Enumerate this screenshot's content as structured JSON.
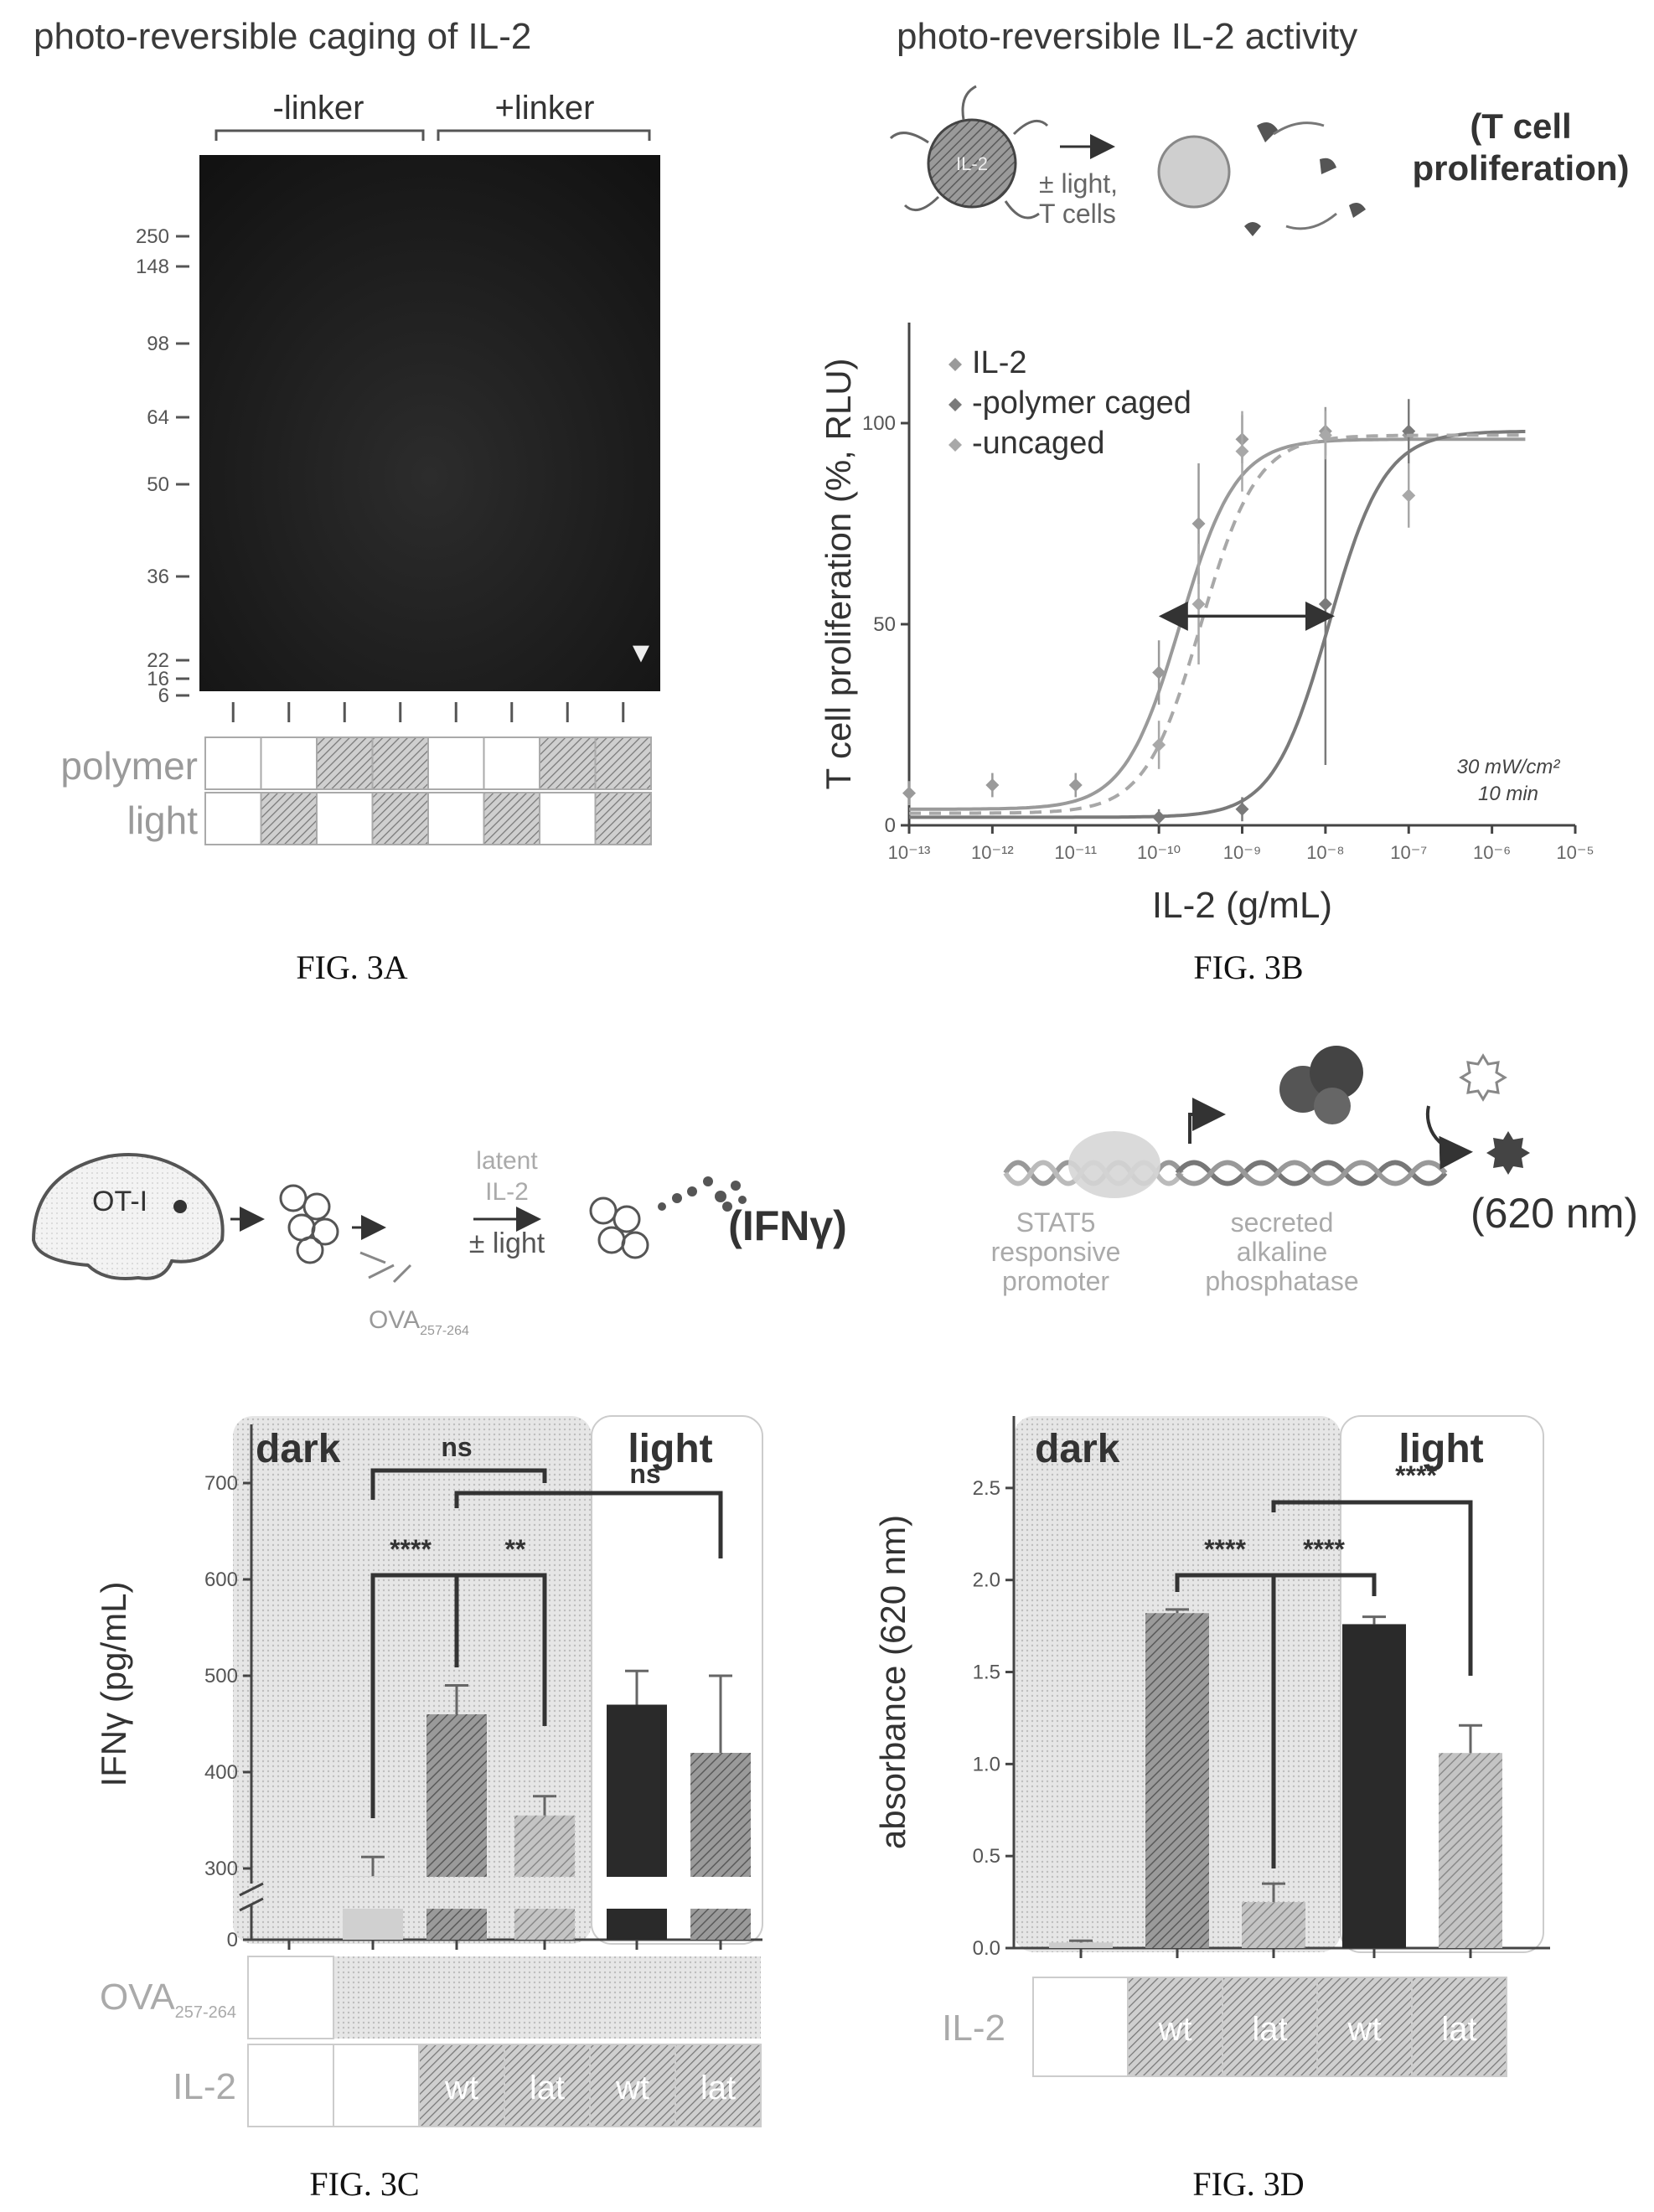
{
  "panels": {
    "a": {
      "title": "photo-reversible caging of IL-2",
      "caption": "FIG. 3A",
      "groups": [
        "-linker",
        "+linker"
      ],
      "ladder": [
        "250",
        "148",
        "98",
        "64",
        "50",
        "36",
        "22",
        "16",
        "6"
      ],
      "row_labels": [
        "polymer",
        "light"
      ],
      "polymer": [
        0,
        0,
        1,
        1,
        0,
        0,
        1,
        1
      ],
      "light": [
        0,
        1,
        0,
        1,
        0,
        1,
        0,
        1
      ],
      "marker": "▼"
    },
    "b": {
      "title": "photo-reversible IL-2 activity",
      "scheme_line1": "± light,",
      "scheme_line2": "T cells",
      "scheme_result_line1": "(T cell",
      "scheme_result_line2": "proliferation)",
      "scheme_blob_label": "IL-2",
      "note_line1": "30 mW/cm²",
      "note_line2": "10 min",
      "caption": "FIG. 3B"
    },
    "c": {
      "scheme_mouse_label": "OT-I",
      "scheme_peptide": "OVA",
      "scheme_peptide_sub": "257-264",
      "scheme_top1": "latent",
      "scheme_top2": "IL-2",
      "scheme_bottom": "± light",
      "scheme_result": "(IFNγ)",
      "region_dark": "dark",
      "region_light": "light",
      "sig": [
        "ns",
        "ns",
        "****",
        "**"
      ],
      "row_ova_label": "OVA",
      "row_ova_sub": "257-264",
      "row_il2_label": "IL-2",
      "il2_cells": [
        "",
        "",
        "wt",
        "lat",
        "wt",
        "lat"
      ],
      "caption": "FIG. 3C"
    },
    "d": {
      "scheme_left1": "STAT5",
      "scheme_left2": "responsive",
      "scheme_left3": "promoter",
      "scheme_mid1": "secreted",
      "scheme_mid2": "alkaline",
      "scheme_mid3": "phosphatase",
      "scheme_result": "(620 nm)",
      "region_dark": "dark",
      "region_light": "light",
      "sig": [
        "****",
        "****",
        "****"
      ],
      "row_il2_label": "IL-2",
      "il2_cells": [
        "",
        "wt",
        "lat",
        "wt",
        "lat"
      ],
      "caption": "FIG. 3D"
    }
  },
  "chart_data": [
    {
      "panel": "B",
      "type": "scatter",
      "xlabel": "IL-2 (g/mL)",
      "ylabel": "T cell proliferation (%, RLU)",
      "xscale": "log",
      "xlim": [
        1e-13,
        1e-05
      ],
      "xticks": [
        "10⁻¹³",
        "10⁻¹²",
        "10⁻¹¹",
        "10⁻¹⁰",
        "10⁻⁹",
        "10⁻⁸",
        "10⁻⁷",
        "10⁻⁶",
        "10⁻⁵"
      ],
      "ylim": [
        0,
        125
      ],
      "yticks": [
        0,
        50,
        100
      ],
      "legend_position": "top-left",
      "arrow_label": "",
      "series": [
        {
          "name": "IL-2",
          "fit": "solid",
          "ec50": 1.8e-10,
          "top": 96,
          "bottom": 4,
          "points": [
            [
              1e-13,
              8,
              3
            ],
            [
              1e-12,
              10,
              3
            ],
            [
              1e-11,
              10,
              3
            ],
            [
              1e-10,
              38,
              8
            ],
            [
              3e-10,
              75,
              15
            ],
            [
              1e-09,
              96,
              6
            ],
            [
              1e-08,
              98,
              6
            ],
            [
              1e-07,
              97,
              6
            ]
          ]
        },
        {
          "name": "-polymer caged",
          "fit": "solid",
          "ec50": 1.1e-08,
          "top": 98,
          "bottom": 2,
          "points": [
            [
              1e-10,
              2,
              2
            ],
            [
              1e-09,
              4,
              3
            ],
            [
              1e-08,
              55,
              40
            ],
            [
              1e-07,
              98,
              8
            ]
          ]
        },
        {
          "name": "-uncaged",
          "fit": "dashed",
          "ec50": 3.2e-10,
          "top": 97,
          "bottom": 3,
          "points": [
            [
              1e-10,
              20,
              6
            ],
            [
              3e-10,
              55,
              15
            ],
            [
              1e-09,
              93,
              10
            ],
            [
              1e-08,
              97,
              6
            ],
            [
              1e-07,
              82,
              8
            ]
          ]
        }
      ]
    },
    {
      "panel": "C",
      "type": "bar",
      "ylabel": "IFNγ (pg/mL)",
      "yaxis_break": true,
      "yticks": [
        0,
        300,
        400,
        500,
        600,
        700
      ],
      "groups": [
        "dark",
        "dark",
        "dark",
        "dark",
        "light",
        "light"
      ],
      "values": [
        292,
        460,
        355,
        470,
        420,
        0
      ],
      "errors": [
        20,
        30,
        20,
        35,
        80,
        0
      ],
      "series_values": [
        {
          "value": 292,
          "error": 20,
          "fill": "light"
        },
        {
          "value": 460,
          "error": 30,
          "fill": "hatched"
        },
        {
          "value": 355,
          "error": 20,
          "fill": "light-hatched"
        },
        {
          "value": 470,
          "error": 35,
          "fill": "dark"
        },
        {
          "value": 420,
          "error": 80,
          "fill": "hatched"
        }
      ]
    },
    {
      "panel": "D",
      "type": "bar",
      "ylabel": "absorbance (620 nm)",
      "ylim": [
        0,
        2.8
      ],
      "yticks": [
        0.0,
        0.5,
        1.0,
        1.5,
        2.0,
        2.5
      ],
      "categories": [
        "",
        "wt",
        "lat",
        "wt",
        "lat"
      ],
      "values": [
        0.03,
        1.82,
        0.25,
        1.76,
        1.06
      ],
      "errors": [
        0.01,
        0.02,
        0.1,
        0.04,
        0.15
      ]
    }
  ]
}
